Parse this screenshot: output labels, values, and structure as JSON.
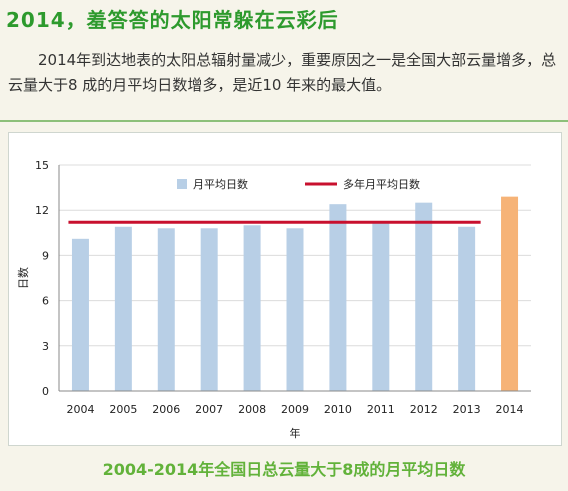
{
  "headline": "2014，羞答答的太阳常躲在云彩后",
  "intro": "2014年到达地表的太阳总辐射量减少，重要原因之一是全国大部云量增多，总云量大于8 成的月平均日数增多，是近10 年来的最大值。",
  "caption": "2004-2014年全国日总云量大于8成的月平均日数",
  "colors": {
    "bar": "#b8cfe6",
    "highlight_bar": "#f6b377",
    "average_line": "#c8102e",
    "headline": "#2d9a2d",
    "caption": "#62b23a"
  },
  "chart_data": {
    "type": "bar",
    "categories": [
      "2004",
      "2005",
      "2006",
      "2007",
      "2008",
      "2009",
      "2010",
      "2011",
      "2012",
      "2013",
      "2014"
    ],
    "series": [
      {
        "name": "月平均日数",
        "values": [
          10.1,
          10.9,
          10.8,
          10.8,
          11.0,
          10.8,
          12.4,
          11.2,
          12.5,
          10.9,
          12.9
        ]
      }
    ],
    "reference_line": {
      "name": "多年月平均日数",
      "value": 11.2,
      "from": "2004",
      "to": "2013"
    },
    "highlight_category": "2014",
    "xlabel": "年",
    "ylabel": "日数",
    "ylim": [
      0,
      15
    ],
    "yticks": [
      0,
      3,
      6,
      9,
      12,
      15
    ],
    "grid": true,
    "legend": "top-center"
  }
}
